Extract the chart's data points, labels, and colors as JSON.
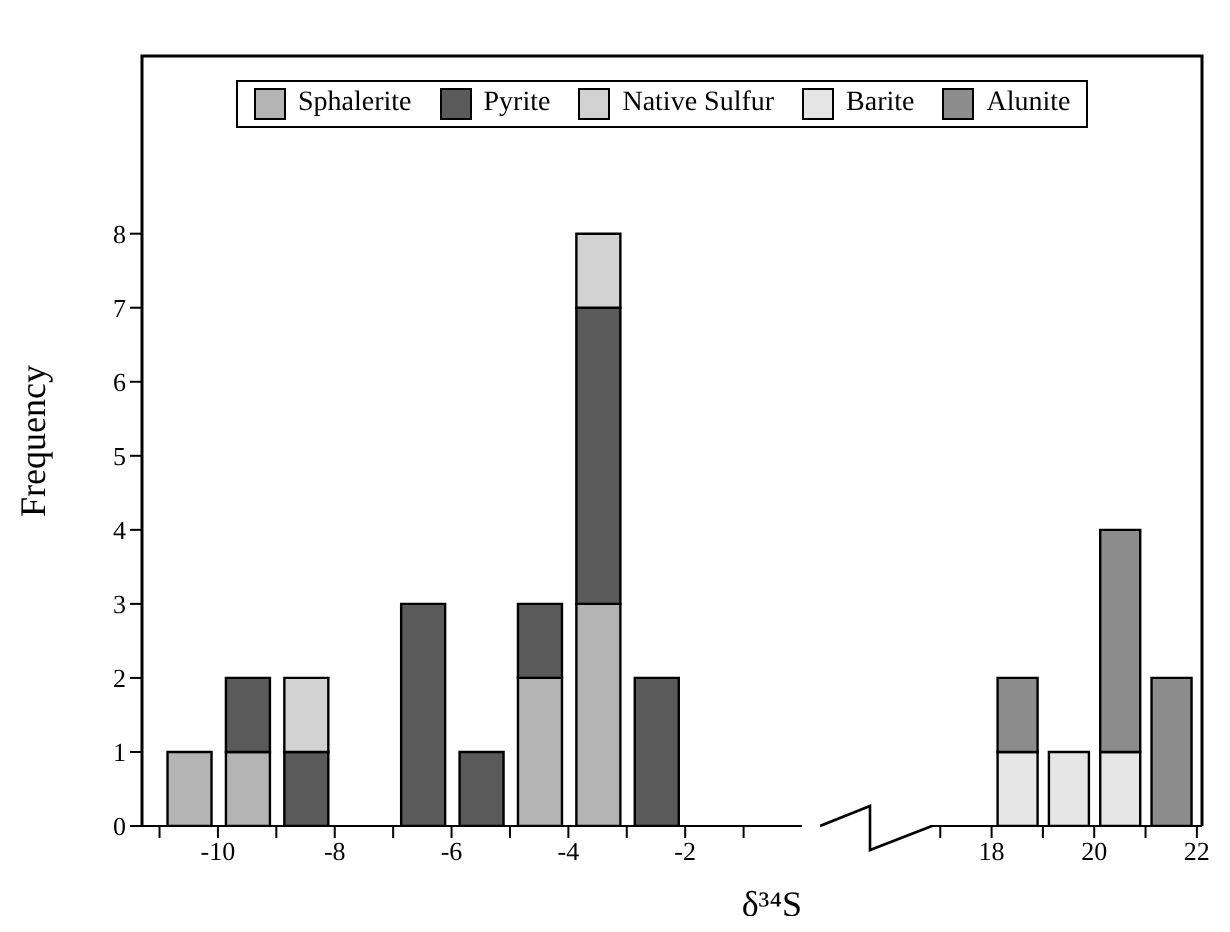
{
  "chart_data": [
    {
      "type": "bar",
      "stacked": true,
      "ylabel": "Frequency",
      "xlabel": "δ³⁴S",
      "legend": "top",
      "x": [
        -10.5,
        -9.5,
        -8.5,
        -7.5,
        -6.5,
        -5.5,
        -4.5,
        -3.5,
        -2.5
      ],
      "xlim": [
        -11.3,
        0
      ],
      "xticks": [
        {
          "value": -11,
          "label": null
        },
        -10,
        {
          "value": -9,
          "label": null
        },
        -8,
        {
          "value": -7,
          "label": null
        },
        -6,
        {
          "value": -5,
          "label": null
        },
        -4,
        {
          "value": -3,
          "label": null
        },
        -2,
        {
          "value": -1,
          "label": null
        }
      ],
      "ylim": [
        0,
        10.4
      ],
      "yticks": [
        0,
        1,
        2,
        3,
        4,
        5,
        6,
        7,
        8
      ],
      "series": [
        {
          "name": "Sphalerite",
          "color": "#b4b4b4",
          "values": [
            1,
            1,
            null,
            null,
            null,
            null,
            2,
            3,
            null
          ]
        },
        {
          "name": "Pyrite",
          "color": "#5a5a5a",
          "values": [
            null,
            1,
            1,
            null,
            3,
            1,
            1,
            4,
            2
          ]
        },
        {
          "name": "Native Sulfur",
          "color": "#d2d2d2",
          "values": [
            null,
            null,
            1,
            null,
            null,
            null,
            null,
            1,
            null
          ]
        }
      ]
    },
    {
      "type": "bar",
      "stacked": true,
      "legend": "top",
      "tick_labels": "x",
      "x": [
        18.5,
        19.5,
        20.5,
        21.5
      ],
      "xlim": [
        16.8,
        22.1
      ],
      "xticks": [
        {
          "value": 17,
          "label": null
        },
        18,
        {
          "value": 19,
          "label": null
        },
        20,
        {
          "value": 21,
          "label": null
        },
        22
      ],
      "ylim": [
        0,
        10.4
      ],
      "yticks": [
        0,
        1,
        2,
        3,
        4,
        5,
        6,
        7,
        8
      ],
      "series": [
        {
          "name": "Barite",
          "color": "#e6e6e6",
          "values": [
            1,
            1,
            1,
            null
          ]
        },
        {
          "name": "Alunite",
          "color": "#8c8c8c",
          "values": [
            1,
            null,
            3,
            2
          ]
        }
      ]
    }
  ]
}
